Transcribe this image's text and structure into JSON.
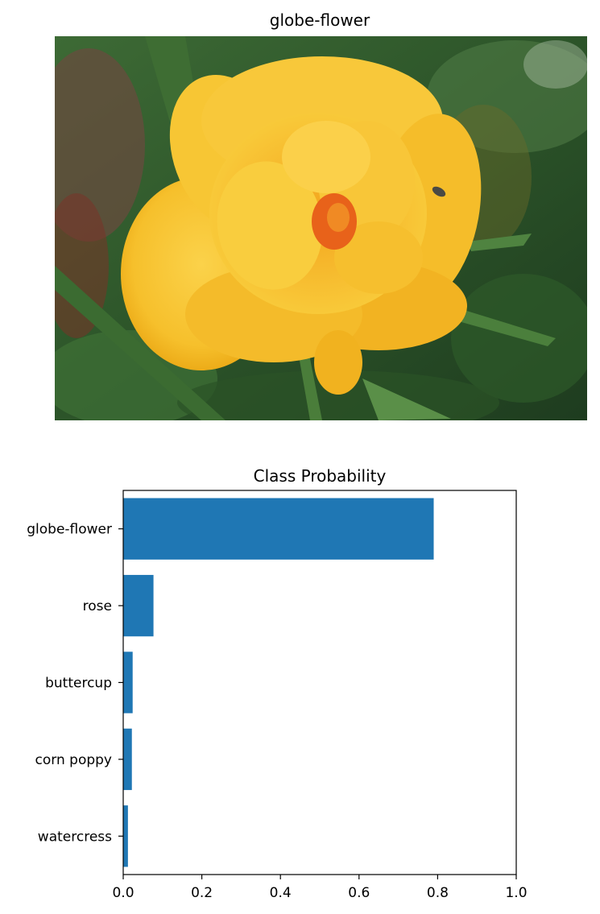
{
  "image_panel": {
    "title": "globe-flower",
    "photo_subject": "yellow globe-flower blossom with green foliage background"
  },
  "colors": {
    "bar": "#1f77b4",
    "axis": "#000000",
    "petal_light": "#f8c93a",
    "petal_dark": "#eea514",
    "center": "#e8621a",
    "foliage": "#2f5a2c"
  },
  "chart_data": {
    "type": "bar",
    "orientation": "horizontal",
    "title": "Class Probability",
    "categories": [
      "globe-flower",
      "rose",
      "buttercup",
      "corn poppy",
      "watercress"
    ],
    "values": [
      0.79,
      0.077,
      0.024,
      0.022,
      0.012
    ],
    "xlim": [
      0,
      1.0
    ],
    "xticks": [
      "0.0",
      "0.2",
      "0.4",
      "0.6",
      "0.8",
      "1.0"
    ],
    "xlabel": "",
    "ylabel": "",
    "grid": false,
    "legend": "none"
  }
}
